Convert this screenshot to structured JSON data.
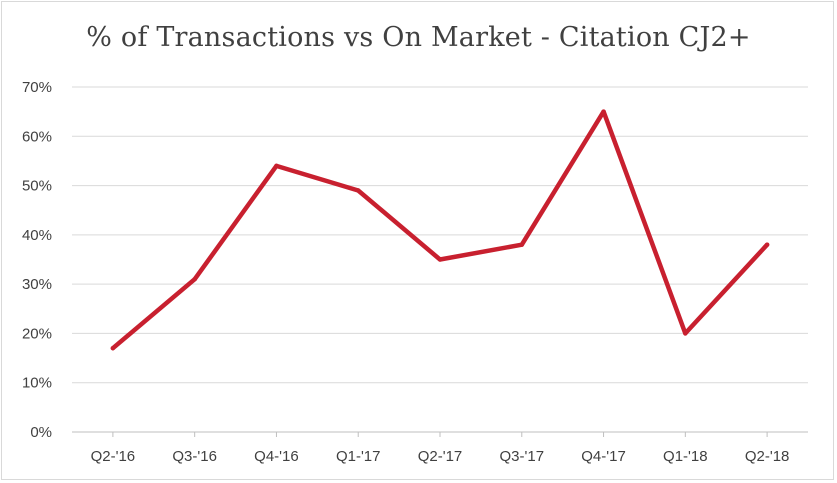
{
  "chart_data": {
    "type": "line",
    "title": "% of Transactions vs On Market - Citation CJ2+",
    "xlabel": "",
    "ylabel": "",
    "categories": [
      "Q2-'16",
      "Q3-'16",
      "Q4-'16",
      "Q1-'17",
      "Q2-'17",
      "Q3-'17",
      "Q4-'17",
      "Q1-'18",
      "Q2-'18"
    ],
    "series": [
      {
        "values": [
          17,
          31,
          54,
          49,
          35,
          38,
          65,
          20,
          38
        ],
        "color": "#c8202f"
      }
    ],
    "y_ticks": [
      "0%",
      "10%",
      "20%",
      "30%",
      "40%",
      "50%",
      "60%",
      "70%"
    ],
    "ylim": [
      0,
      70
    ],
    "grid": true,
    "legend": "none"
  }
}
